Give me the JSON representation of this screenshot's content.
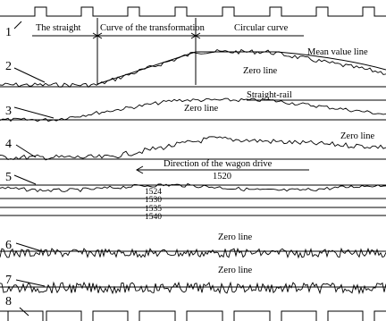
{
  "track_numbers": [
    "1",
    "2",
    "3",
    "4",
    "5",
    "6",
    "7",
    "8"
  ],
  "sections": {
    "straight": "The straight",
    "transition": "Curve of the transformation",
    "circular": "Circular curve"
  },
  "annotations": {
    "mean_value_line": "Mean value line",
    "zero_line": "Zero line",
    "straight_rail": "Straight-rail",
    "direction": "Direction of the wagon drive"
  },
  "gauge_values": [
    "1520",
    "1524",
    "1530",
    "1535",
    "1540"
  ]
}
